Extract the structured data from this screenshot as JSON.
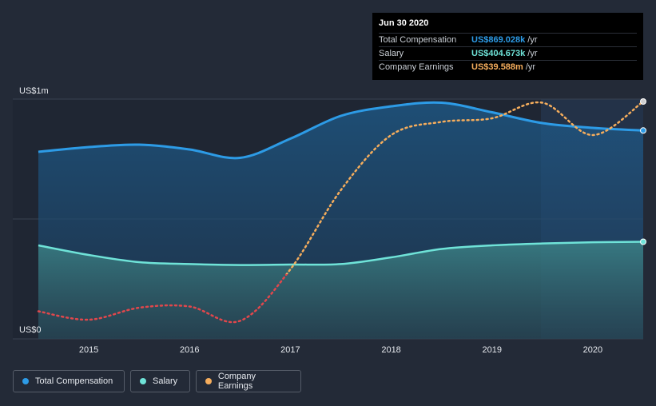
{
  "tooltip": {
    "date": "Jun 30 2020",
    "rows": [
      {
        "label": "Total Compensation",
        "value": "US$869.028k",
        "unit": "/yr",
        "color": "#2d9be6"
      },
      {
        "label": "Salary",
        "value": "US$404.673k",
        "unit": "/yr",
        "color": "#6fe3d8"
      },
      {
        "label": "Company Earnings",
        "value": "US$39.588m",
        "unit": "/yr",
        "color": "#f5ad5c"
      }
    ]
  },
  "legend": [
    {
      "label": "Total Compensation",
      "color": "#2d9be6"
    },
    {
      "label": "Salary",
      "color": "#6fe3d8"
    },
    {
      "label": "Company Earnings",
      "color": "#f5ad5c"
    }
  ],
  "chart_data": {
    "type": "area",
    "ylabel_top": "US$1m",
    "ylabel_bottom": "US$0",
    "ylim": [
      0,
      1000
    ],
    "xlim": [
      2014.5,
      2020.5
    ],
    "xticks": [
      "2015",
      "2016",
      "2017",
      "2018",
      "2019",
      "2020"
    ],
    "grid": true,
    "series": [
      {
        "name": "Total Compensation",
        "unit": "US$k",
        "color": "#2d9be6",
        "x": [
          2014.5,
          2015.0,
          2015.5,
          2016.0,
          2016.5,
          2017.0,
          2017.5,
          2018.0,
          2018.5,
          2019.0,
          2019.5,
          2020.0,
          2020.5
        ],
        "y": [
          780,
          800,
          810,
          790,
          755,
          835,
          930,
          970,
          985,
          945,
          900,
          880,
          869
        ]
      },
      {
        "name": "Salary",
        "unit": "US$k",
        "color": "#6fe3d8",
        "x": [
          2014.5,
          2015.0,
          2015.5,
          2016.0,
          2016.5,
          2017.0,
          2017.5,
          2018.0,
          2018.5,
          2019.0,
          2019.5,
          2020.0,
          2020.5
        ],
        "y": [
          390,
          350,
          320,
          312,
          308,
          310,
          312,
          340,
          375,
          390,
          398,
          403,
          405
        ]
      },
      {
        "name": "Company Earnings",
        "unit": "scaled to axis",
        "color": "#f5ad5c",
        "x": [
          2014.5,
          2015.0,
          2015.5,
          2016.0,
          2016.5,
          2017.0,
          2017.5,
          2018.0,
          2018.5,
          2019.0,
          2019.5,
          2020.0,
          2020.5
        ],
        "y": [
          115,
          80,
          130,
          135,
          75,
          290,
          620,
          850,
          905,
          920,
          985,
          850,
          990
        ]
      }
    ]
  }
}
